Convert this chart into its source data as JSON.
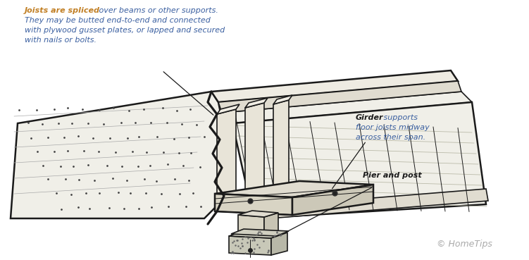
{
  "bg_color": "#ffffff",
  "line_color": "#1a1a1a",
  "label1_bold": "Joists are spliced",
  "label1_rest": " over beams or other supports.",
  "label1_line2": "They may be butted end-to-end and connected",
  "label1_line3": "with plywood gusset plates, or lapped and secured",
  "label1_line4": "with nails or bolts.",
  "label1_color_bold": "#c17f24",
  "label1_color_rest": "#3a5fa0",
  "label2_bold": "Girder",
  "label2_rest": " supports",
  "label2_line2": "floor joists midway",
  "label2_line3": "across their span.",
  "label2_color_bold": "#1a1a1a",
  "label2_color_rest": "#3a5fa0",
  "label3": "Pier and post",
  "label3_color": "#1a1a1a",
  "copyright": "© HomeTips",
  "copyright_color": "#aaaaaa",
  "fig_width": 7.51,
  "fig_height": 3.69,
  "dpi": 100
}
